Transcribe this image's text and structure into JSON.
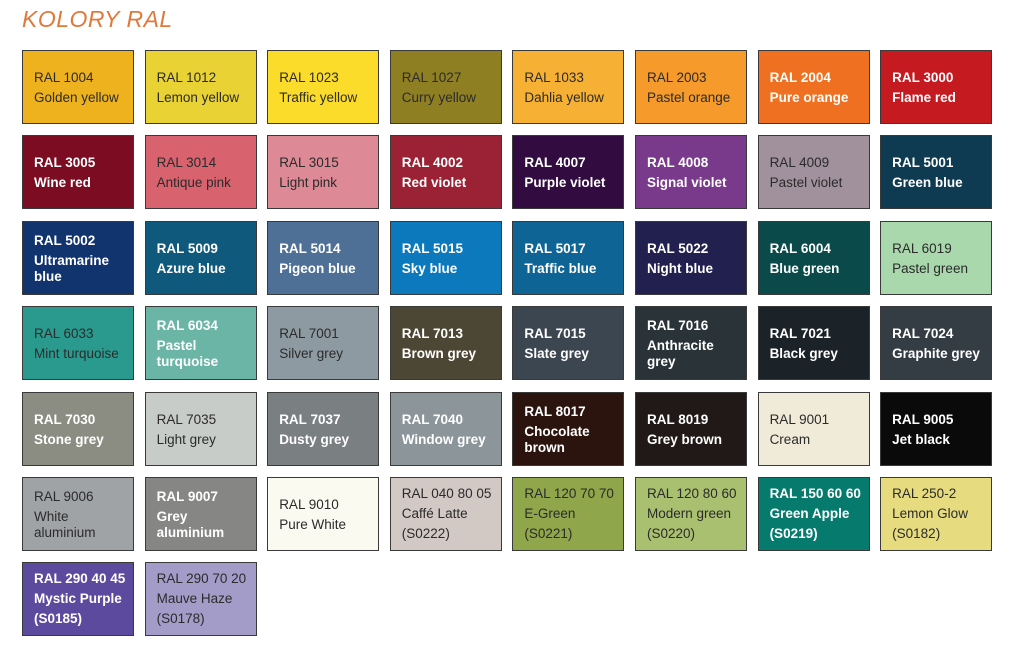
{
  "title": "KOLORY RAL",
  "swatches": [
    {
      "code": "RAL 1004",
      "name": "Golden yellow",
      "color": "#eeb21e",
      "light": false
    },
    {
      "code": "RAL 1012",
      "name": "Lemon yellow",
      "color": "#e8d234",
      "light": false
    },
    {
      "code": "RAL 1023",
      "name": "Traffic yellow",
      "color": "#fcdc2a",
      "light": false
    },
    {
      "code": "RAL 1027",
      "name": "Curry yellow",
      "color": "#8f7f23",
      "light": false
    },
    {
      "code": "RAL 1033",
      "name": "Dahlia yellow",
      "color": "#f6b134",
      "light": false
    },
    {
      "code": "RAL 2003",
      "name": "Pastel orange",
      "color": "#f59a2b",
      "light": false
    },
    {
      "code": "RAL 2004",
      "name": "Pure orange",
      "color": "#ee7020",
      "light": true
    },
    {
      "code": "RAL 3000",
      "name": "Flame red",
      "color": "#c51a20",
      "light": true
    },
    {
      "code": "RAL 3005",
      "name": "Wine red",
      "color": "#7b0c22",
      "light": true
    },
    {
      "code": "RAL 3014",
      "name": "Antique pink",
      "color": "#d8636f",
      "light": false
    },
    {
      "code": "RAL 3015",
      "name": "Light pink",
      "color": "#dd8996",
      "light": false
    },
    {
      "code": "RAL 4002",
      "name": "Red violet",
      "color": "#9b2234",
      "light": true
    },
    {
      "code": "RAL 4007",
      "name": "Purple violet",
      "color": "#320c40",
      "light": true
    },
    {
      "code": "RAL 4008",
      "name": "Signal violet",
      "color": "#7a3a8c",
      "light": true
    },
    {
      "code": "RAL 4009",
      "name": "Pastel violet",
      "color": "#a0919c",
      "light": false
    },
    {
      "code": "RAL 5001",
      "name": "Green blue",
      "color": "#0e3a52",
      "light": true
    },
    {
      "code": "RAL 5002",
      "name": "Ultramarine blue",
      "color": "#11336e",
      "light": true
    },
    {
      "code": "RAL 5009",
      "name": "Azure blue",
      "color": "#0f5a7c",
      "light": true
    },
    {
      "code": "RAL 5014",
      "name": "Pigeon blue",
      "color": "#4e7096",
      "light": true
    },
    {
      "code": "RAL 5015",
      "name": "Sky blue",
      "color": "#0c79bd",
      "light": true
    },
    {
      "code": "RAL 5017",
      "name": "Traffic blue",
      "color": "#0e6494",
      "light": true
    },
    {
      "code": "RAL 5022",
      "name": "Night blue",
      "color": "#22204e",
      "light": true
    },
    {
      "code": "RAL 6004",
      "name": "Blue green",
      "color": "#0a4a4a",
      "light": true
    },
    {
      "code": "RAL 6019",
      "name": "Pastel green",
      "color": "#a8d8ac",
      "light": false
    },
    {
      "code": "RAL 6033",
      "name": "Mint turquoise",
      "color": "#2a9a8e",
      "light": false
    },
    {
      "code": "RAL 6034",
      "name": "Pastel turquoise",
      "color": "#6ab5a5",
      "light": true
    },
    {
      "code": "RAL 7001",
      "name": "Silver grey",
      "color": "#8e9aa2",
      "light": false
    },
    {
      "code": "RAL 7013",
      "name": "Brown grey",
      "color": "#4c4634",
      "light": true
    },
    {
      "code": "RAL 7015",
      "name": "Slate grey",
      "color": "#3c4650",
      "light": true
    },
    {
      "code": "RAL 7016",
      "name": "Anthracite grey",
      "color": "#293338",
      "light": true
    },
    {
      "code": "RAL 7021",
      "name": "Black grey",
      "color": "#1c2328",
      "light": true
    },
    {
      "code": "RAL 7024",
      "name": "Graphite grey",
      "color": "#343d44",
      "light": true
    },
    {
      "code": "RAL 7030",
      "name": "Stone grey",
      "color": "#8b8c82",
      "light": true
    },
    {
      "code": "RAL 7035",
      "name": "Light grey",
      "color": "#c8ccc8",
      "light": false
    },
    {
      "code": "RAL 7037",
      "name": "Dusty grey",
      "color": "#7a7f82",
      "light": true
    },
    {
      "code": "RAL 7040",
      "name": "Window grey",
      "color": "#8c969a",
      "light": true
    },
    {
      "code": "RAL 8017",
      "name": "Chocolate brown",
      "color": "#2c140e",
      "light": true
    },
    {
      "code": "RAL 8019",
      "name": "Grey brown",
      "color": "#211818",
      "light": true
    },
    {
      "code": "RAL 9001",
      "name": "Cream",
      "color": "#efebd8",
      "light": false
    },
    {
      "code": "RAL 9005",
      "name": "Jet black",
      "color": "#0a0a0a",
      "light": true
    },
    {
      "code": "RAL 9006",
      "name": "White aluminium",
      "color": "#a0a3a5",
      "light": false
    },
    {
      "code": "RAL 9007",
      "name": "Grey aluminium",
      "color": "#868785",
      "light": true
    },
    {
      "code": "RAL 9010",
      "name": "Pure White",
      "color": "#fafaf0",
      "light": false
    },
    {
      "code": "RAL 040 80 05",
      "name": "Caffé Latte",
      "note": "(S0222)",
      "color": "#d2c8c4",
      "light": false
    },
    {
      "code": "RAL 120 70 70",
      "name": "E-Green",
      "note": "(S0221)",
      "color": "#8fa64a",
      "light": false
    },
    {
      "code": "RAL 120 80 60",
      "name": "Modern green",
      "note": "(S0220)",
      "color": "#a8c070",
      "light": false
    },
    {
      "code": "RAL 150 60 60",
      "name": "Green Apple",
      "note": "(S0219)",
      "color": "#077a6e",
      "light": true
    },
    {
      "code": "RAL 250-2",
      "name": "Lemon Glow",
      "note": "(S0182)",
      "color": "#e6db7e",
      "light": false
    },
    {
      "code": "RAL 290 40 45",
      "name": "Mystic Purple",
      "note": "(S0185)",
      "color": "#5c4a9e",
      "light": true
    },
    {
      "code": "RAL 290 70 20",
      "name": "Mauve Haze",
      "note": "(S0178)",
      "color": "#a49cc8",
      "light": false
    }
  ]
}
